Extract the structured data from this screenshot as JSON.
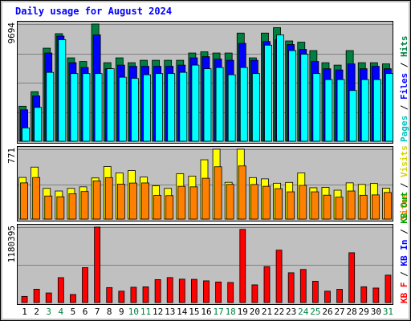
{
  "chart_data": [
    {
      "type": "bar",
      "title": "Daily usage for August 2024",
      "categories": [
        "1",
        "2",
        "3",
        "4",
        "5",
        "6",
        "7",
        "8",
        "9",
        "10",
        "11",
        "12",
        "13",
        "14",
        "15",
        "16",
        "17",
        "18",
        "19",
        "20",
        "21",
        "22",
        "23",
        "24",
        "25",
        "26",
        "27",
        "28",
        "29",
        "30",
        "31"
      ],
      "weekend_days": [
        "3",
        "4",
        "10",
        "11",
        "17",
        "18",
        "24",
        "25",
        "31"
      ],
      "ymax": 9694,
      "ymax_label": "9694",
      "legend": [
        "Pages",
        "Files",
        "Hits"
      ],
      "series": [
        {
          "name": "Hits",
          "color": "#008040",
          "values": [
            2900,
            4100,
            7700,
            8900,
            6900,
            6600,
            9694,
            6500,
            6900,
            6500,
            6700,
            6700,
            6700,
            6700,
            7300,
            7400,
            7300,
            7300,
            8950,
            6900,
            8950,
            9400,
            8300,
            8200,
            7500,
            6500,
            6300,
            7500,
            6500,
            6500,
            6400
          ]
        },
        {
          "name": "Files",
          "color": "#0000ff",
          "values": [
            2600,
            3750,
            7300,
            8700,
            6500,
            6100,
            8800,
            6000,
            6300,
            6200,
            6200,
            6200,
            6200,
            6300,
            6900,
            7000,
            6800,
            6700,
            8100,
            6700,
            8250,
            8400,
            8000,
            7600,
            6600,
            6000,
            5900,
            6400,
            6000,
            6200,
            6000
          ]
        },
        {
          "name": "Pages",
          "color": "#00ffff",
          "values": [
            1100,
            2800,
            5700,
            8400,
            5600,
            5600,
            5600,
            6000,
            5300,
            5200,
            5500,
            5600,
            5600,
            5700,
            6300,
            6000,
            6100,
            5500,
            6100,
            5600,
            7950,
            8800,
            7500,
            7200,
            5600,
            5100,
            5100,
            4200,
            5100,
            5100,
            5600
          ]
        }
      ]
    },
    {
      "type": "bar",
      "categories": [
        "1",
        "2",
        "3",
        "4",
        "5",
        "6",
        "7",
        "8",
        "9",
        "10",
        "11",
        "12",
        "13",
        "14",
        "15",
        "16",
        "17",
        "18",
        "19",
        "20",
        "21",
        "22",
        "23",
        "24",
        "25",
        "26",
        "27",
        "28",
        "29",
        "30",
        "31"
      ],
      "ymax": 771,
      "ymax_label": "771",
      "legend": [
        "Sites",
        "Visits"
      ],
      "series": [
        {
          "name": "Visits",
          "color": "#ffff00",
          "values": [
            460,
            574,
            339,
            310,
            339,
            356,
            454,
            580,
            510,
            536,
            464,
            368,
            339,
            500,
            474,
            655,
            771,
            406,
            771,
            458,
            444,
            396,
            405,
            510,
            346,
            350,
            319,
            400,
            383,
            393,
            341
          ]
        },
        {
          "name": "Sites",
          "color": "#ff8000",
          "values": [
            400,
            459,
            255,
            247,
            280,
            304,
            421,
            458,
            386,
            398,
            399,
            261,
            259,
            362,
            356,
            451,
            578,
            383,
            587,
            382,
            362,
            336,
            301,
            372,
            301,
            264,
            242,
            310,
            263,
            267,
            294
          ]
        }
      ]
    },
    {
      "type": "bar",
      "categories": [
        "1",
        "2",
        "3",
        "4",
        "5",
        "6",
        "7",
        "8",
        "9",
        "10",
        "11",
        "12",
        "13",
        "14",
        "15",
        "16",
        "17",
        "18",
        "19",
        "20",
        "21",
        "22",
        "23",
        "24",
        "25",
        "26",
        "27",
        "28",
        "29",
        "30",
        "31"
      ],
      "ymax": 1180395,
      "ymax_label": "1180395",
      "legend": [
        "KB F",
        "KB In",
        "KB Out"
      ],
      "series": [
        {
          "name": "KB F",
          "color": "#ff0000",
          "values": [
            96000,
            209000,
            150000,
            390000,
            126000,
            546000,
            1180395,
            234000,
            178000,
            240000,
            246000,
            359000,
            391000,
            366000,
            363000,
            340000,
            322000,
            314000,
            1145000,
            277000,
            563000,
            820000,
            466000,
            518000,
            333000,
            178000,
            207000,
            780000,
            247000,
            227000,
            429000
          ]
        }
      ]
    }
  ]
}
